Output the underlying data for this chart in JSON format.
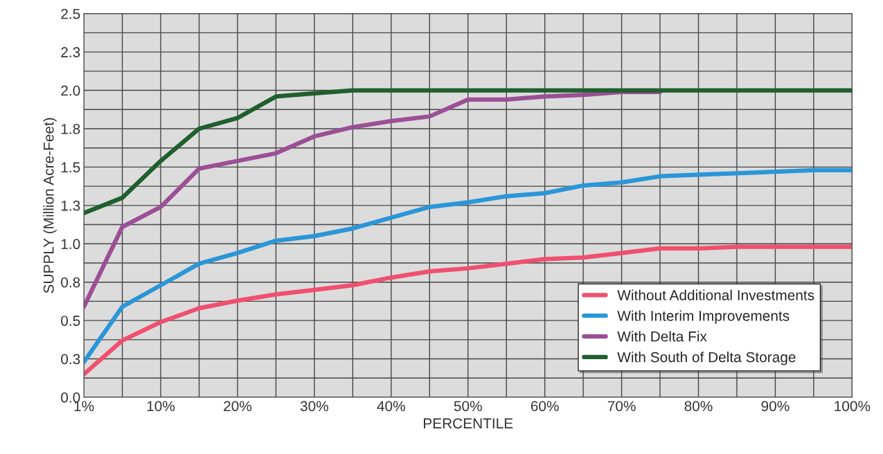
{
  "chart_data": {
    "type": "line",
    "xlabel": "PERCENTILE",
    "ylabel": "SUPPLY (Million Acre-Feet)",
    "categories": [
      "1%",
      null,
      "10%",
      null,
      "20%",
      null,
      "30%",
      null,
      "40%",
      null,
      "50%",
      null,
      "60%",
      null,
      "70%",
      null,
      "80%",
      null,
      "90%",
      null,
      "100%"
    ],
    "series": [
      {
        "name": "Without Additional Investments",
        "color": "#f0506e",
        "values": [
          0.15,
          0.37,
          0.49,
          0.58,
          0.63,
          0.67,
          0.7,
          0.73,
          0.78,
          0.82,
          0.84,
          0.87,
          0.9,
          0.91,
          0.94,
          0.97,
          0.97,
          0.98,
          0.98,
          0.98,
          0.98
        ]
      },
      {
        "name": "With Interim Improvements",
        "color": "#2a96d8",
        "values": [
          0.23,
          0.59,
          0.73,
          0.87,
          0.94,
          1.02,
          1.05,
          1.1,
          1.17,
          1.24,
          1.27,
          1.31,
          1.33,
          1.38,
          1.4,
          1.44,
          1.45,
          1.46,
          1.47,
          1.48,
          1.48
        ]
      },
      {
        "name": "With Delta Fix",
        "color": "#9b4f96",
        "values": [
          0.59,
          1.11,
          1.24,
          1.49,
          1.54,
          1.59,
          1.7,
          1.76,
          1.8,
          1.83,
          1.94,
          1.94,
          1.96,
          1.97,
          1.99,
          1.99,
          null,
          null,
          null,
          null,
          null
        ]
      },
      {
        "name": "With South of Delta Storage",
        "color": "#1f5f2e",
        "values": [
          1.2,
          1.3,
          1.54,
          1.75,
          1.82,
          1.96,
          1.98,
          2.0,
          2.0,
          2.0,
          2.0,
          2.0,
          2.0,
          2.0,
          2.0,
          2.0,
          2.0,
          2.0,
          2.0,
          2.0,
          2.0
        ]
      }
    ],
    "ylim": [
      0,
      2.5
    ],
    "yticks": [
      {
        "value": 0,
        "label": "0.0"
      },
      {
        "value": 0.125,
        "label": null
      },
      {
        "value": 0.25,
        "label": "0.3"
      },
      {
        "value": 0.375,
        "label": null
      },
      {
        "value": 0.5,
        "label": "0.5"
      },
      {
        "value": 0.625,
        "label": null
      },
      {
        "value": 0.75,
        "label": "0.8"
      },
      {
        "value": 0.875,
        "label": null
      },
      {
        "value": 1.0,
        "label": "1.0"
      },
      {
        "value": 1.125,
        "label": null
      },
      {
        "value": 1.25,
        "label": "1.3"
      },
      {
        "value": 1.375,
        "label": null
      },
      {
        "value": 1.5,
        "label": "1.5"
      },
      {
        "value": 1.625,
        "label": null
      },
      {
        "value": 1.75,
        "label": "1.8"
      },
      {
        "value": 1.875,
        "label": null
      },
      {
        "value": 2.0,
        "label": "2.0"
      },
      {
        "value": 2.125,
        "label": null
      },
      {
        "value": 2.25,
        "label": "2.3"
      },
      {
        "value": 2.375,
        "label": null
      },
      {
        "value": 2.5,
        "label": "2.5"
      }
    ],
    "grid": true,
    "legend": "bottom right",
    "marker": "none",
    "line_style": "solid"
  }
}
